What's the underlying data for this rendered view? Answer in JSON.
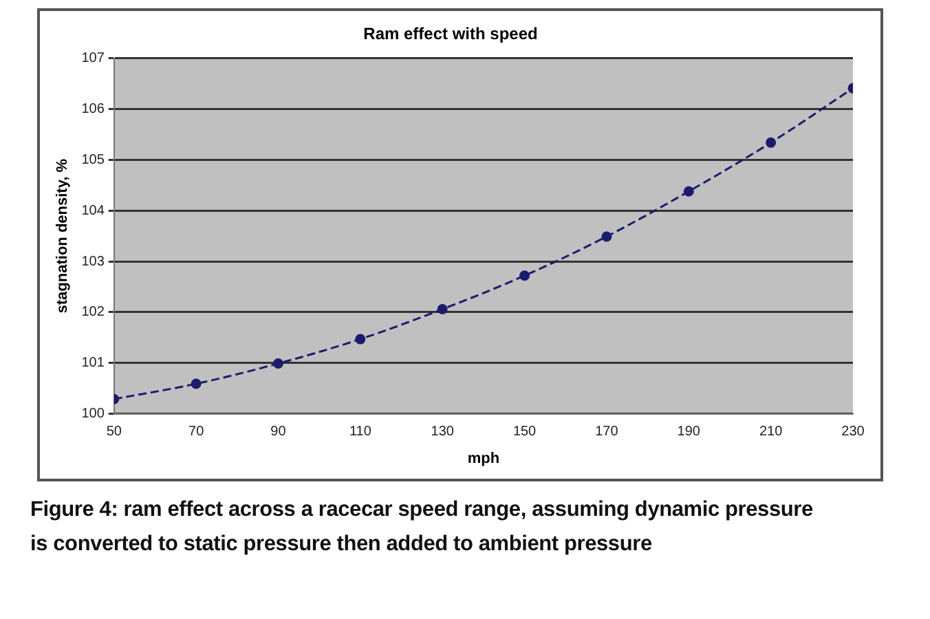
{
  "chart_data": {
    "type": "line",
    "title": "Ram effect with speed",
    "xlabel": "mph",
    "ylabel": "stagnation density, %",
    "x": [
      50,
      70,
      90,
      110,
      130,
      150,
      170,
      190,
      210,
      230
    ],
    "series": [
      {
        "color": "#1c1c6e",
        "values": [
          100.29,
          100.59,
          100.99,
          101.47,
          102.06,
          102.72,
          103.49,
          104.38,
          105.34,
          106.41
        ]
      }
    ],
    "xlim": [
      50,
      230
    ],
    "xticks": [
      50,
      70,
      90,
      110,
      130,
      150,
      170,
      190,
      210,
      230
    ],
    "ylim": [
      100,
      107
    ],
    "yticks": [
      100,
      101,
      102,
      103,
      104,
      105,
      106,
      107
    ],
    "grid": "y",
    "marker": "circle",
    "line_style": "dashed",
    "annotations": [
      "Figure 4: ram effect across a racecar speed range, assuming dynamic pressure is converted to static pressure then added to ambient pressure"
    ]
  }
}
